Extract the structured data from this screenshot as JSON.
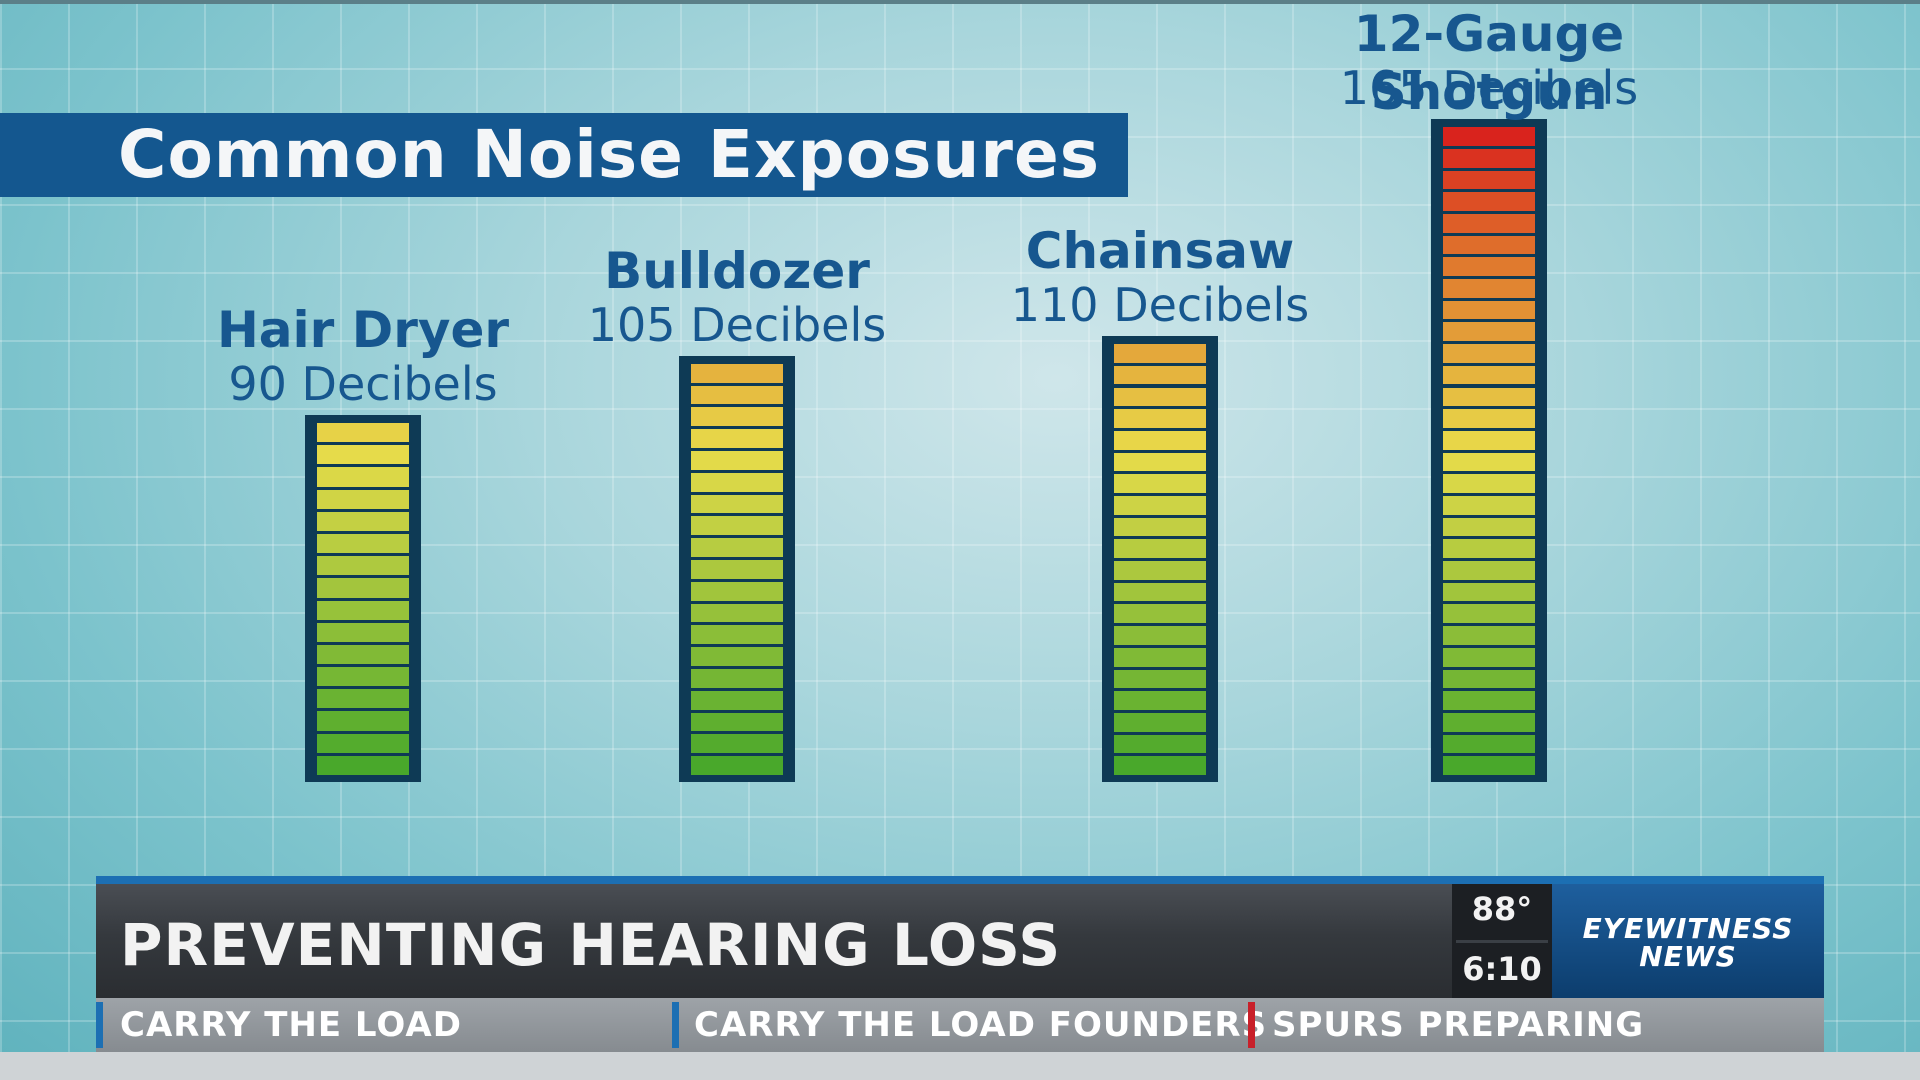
{
  "chart_data": {
    "type": "bar",
    "title": "Common Noise Exposures",
    "categories": [
      "Hair Dryer",
      "Bulldozer",
      "Chainsaw",
      "12-Gauge Shotgun"
    ],
    "values": [
      90,
      105,
      110,
      165
    ],
    "value_labels": [
      "90 Decibels",
      "105 Decibels",
      "110 Decibels",
      "165 Decibels"
    ],
    "unit": "Decibels",
    "grid": true,
    "colors": {
      "scale_low": "#43a62a",
      "scale_mid": "#e8dc4a",
      "scale_high": "#d81c1c",
      "label": "#17578f",
      "title_bar": "#14578f"
    }
  },
  "lower_third": {
    "headline": "PREVENTING HEARING LOSS",
    "temperature": "88°",
    "time": "6:10",
    "logo_line1": "EYEWITNESS",
    "logo_line2": "NEWS"
  },
  "ticker": {
    "items": [
      {
        "text": "CARRY THE LOAD",
        "accent": "#1c6fb3"
      },
      {
        "text": "CARRY THE LOAD FOUNDERS",
        "accent": "#1c6fb3"
      },
      {
        "text": "SPURS PREPARING",
        "accent": "#c8202a"
      }
    ]
  }
}
